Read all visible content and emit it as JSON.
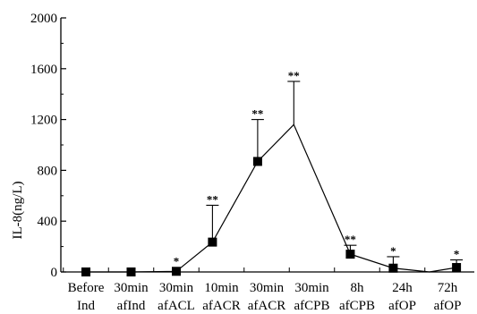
{
  "chart_data": {
    "type": "line",
    "title": "",
    "ylabel": "IL-8(ng/L)",
    "xlabel": "",
    "ylim": [
      0,
      2000
    ],
    "yticks": [
      0,
      400,
      800,
      1200,
      1600,
      2000
    ],
    "grid": false,
    "categories": [
      {
        "line1": "Before",
        "line2": "Ind"
      },
      {
        "line1": "30min",
        "line2": "afInd"
      },
      {
        "line1": "30min",
        "line2": "afACL"
      },
      {
        "line1": "10min",
        "line2": "afACR"
      },
      {
        "line1": "30min",
        "line2": "afACR"
      },
      {
        "line1": "30min",
        "line2": "afCPB"
      },
      {
        "line1": "8h",
        "line2": "afCPB"
      },
      {
        "line1": "24h",
        "line2": "afOP"
      },
      {
        "line1": "72h",
        "line2": "afOP"
      }
    ],
    "series": [
      {
        "points": [
          {
            "x": 0.0,
            "y": 0,
            "marker": true,
            "err": 0,
            "sig": ""
          },
          {
            "x": 1.0,
            "y": 0,
            "marker": true,
            "err": 0,
            "sig": ""
          },
          {
            "x": 2.0,
            "y": 5,
            "marker": true,
            "err": 0,
            "sig": "*"
          },
          {
            "x": 2.8,
            "y": 235,
            "marker": true,
            "err": 290,
            "sig": "**"
          },
          {
            "x": 3.8,
            "y": 870,
            "marker": true,
            "err": 330,
            "sig": "**"
          },
          {
            "x": 4.6,
            "y": 1160,
            "marker": false,
            "err": 340,
            "sig": "**"
          },
          {
            "x": 5.85,
            "y": 140,
            "marker": true,
            "err": 70,
            "sig": "**"
          },
          {
            "x": 6.8,
            "y": 30,
            "marker": true,
            "err": 90,
            "sig": "*"
          },
          {
            "x": 7.6,
            "y": 0,
            "marker": false,
            "err": 0,
            "sig": ""
          },
          {
            "x": 8.2,
            "y": 35,
            "marker": true,
            "err": 60,
            "sig": "*"
          }
        ]
      }
    ]
  }
}
